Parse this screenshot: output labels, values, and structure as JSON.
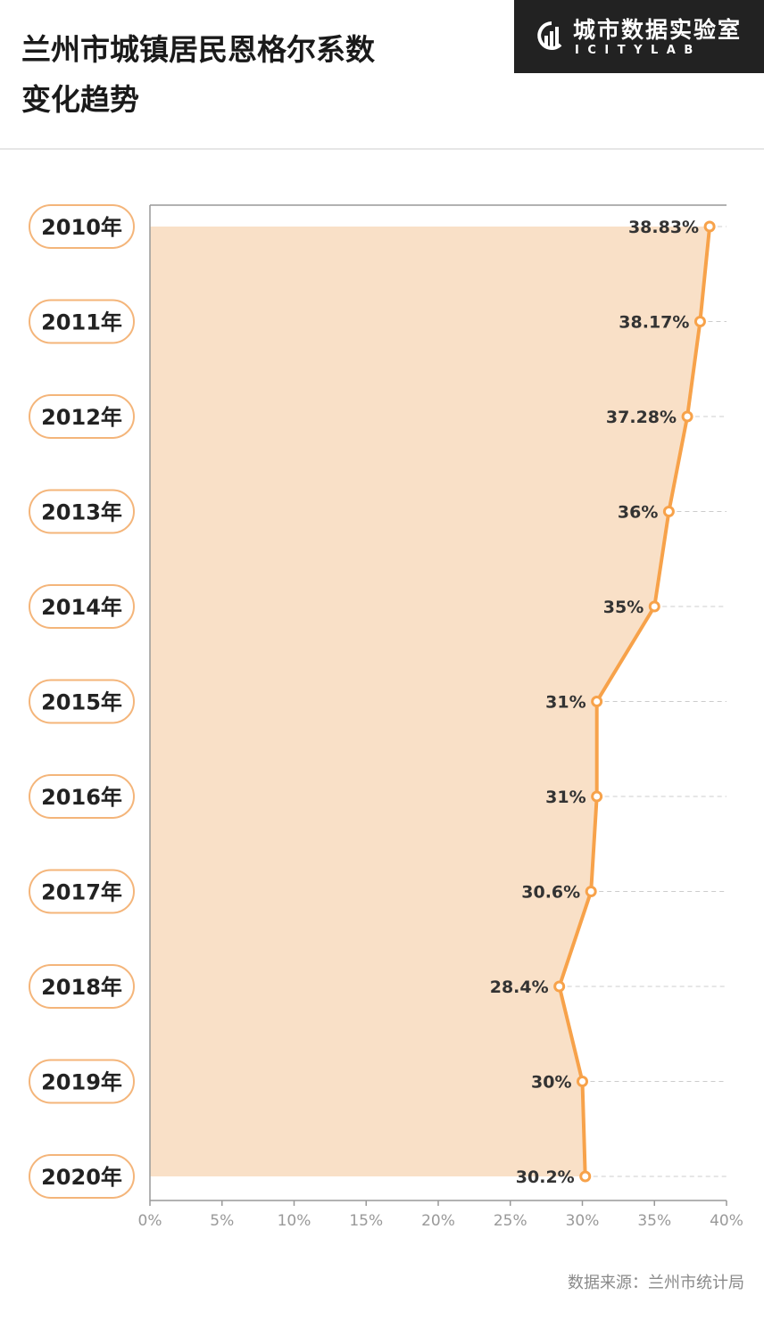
{
  "title": "兰州市城镇居民恩格尔系数\n变化趋势",
  "logo": {
    "main": "城市数据实验室",
    "sub": "ICITYLAB"
  },
  "source": "数据来源：兰州市统计局",
  "colors": {
    "accent": "#f7a24a",
    "fill": "#f9e0c7",
    "axis": "#999999",
    "grid": "#cccccc",
    "label_border": "#f4b57a"
  },
  "chart_data": {
    "type": "line",
    "orientation": "horizontal",
    "categories": [
      "2010年",
      "2011年",
      "2012年",
      "2013年",
      "2014年",
      "2015年",
      "2016年",
      "2017年",
      "2018年",
      "2019年",
      "2020年"
    ],
    "values": [
      38.83,
      38.17,
      37.28,
      36,
      35,
      31,
      31,
      30.6,
      28.4,
      30,
      30.2
    ],
    "data_labels": [
      "38.83%",
      "38.17%",
      "37.28%",
      "36%",
      "35%",
      "31%",
      "31%",
      "30.6%",
      "28.4%",
      "30%",
      "30.2%"
    ],
    "x_ticks": [
      "0%",
      "5%",
      "10%",
      "15%",
      "20%",
      "25%",
      "30%",
      "35%",
      "40%"
    ],
    "xlim": [
      0,
      40
    ],
    "area_fill": true,
    "grid": "dashed-horizontal-right"
  }
}
